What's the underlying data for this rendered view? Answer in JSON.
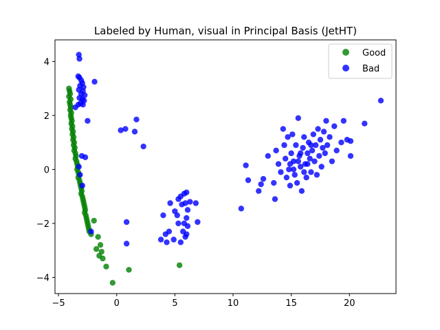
{
  "chart_data": {
    "type": "scatter",
    "title": "Labeled by Human, visual in Principal Basis (JetHT)",
    "xlabel": "",
    "ylabel": "",
    "xlim": [
      -5.3,
      24.0
    ],
    "ylim": [
      -4.6,
      4.8
    ],
    "xticks": [
      -5,
      0,
      5,
      10,
      15,
      20
    ],
    "yticks": [
      -4,
      -2,
      0,
      2,
      4
    ],
    "grid": false,
    "legend_position": "top-right",
    "series": [
      {
        "name": "Good",
        "color": "#008000",
        "points": [
          [
            -4.1,
            3.0
          ],
          [
            -4.05,
            2.9
          ],
          [
            -4.0,
            2.8
          ],
          [
            -4.1,
            2.7
          ],
          [
            -3.95,
            2.6
          ],
          [
            -4.05,
            2.5
          ],
          [
            -4.0,
            2.4
          ],
          [
            -3.95,
            2.3
          ],
          [
            -4.0,
            2.2
          ],
          [
            -3.9,
            2.1
          ],
          [
            -3.95,
            2.0
          ],
          [
            -3.9,
            1.9
          ],
          [
            -3.85,
            1.8
          ],
          [
            -3.9,
            1.7
          ],
          [
            -3.8,
            1.6
          ],
          [
            -3.85,
            1.5
          ],
          [
            -3.75,
            1.4
          ],
          [
            -3.8,
            1.3
          ],
          [
            -3.7,
            1.2
          ],
          [
            -3.75,
            1.1
          ],
          [
            -3.65,
            1.0
          ],
          [
            -3.7,
            0.9
          ],
          [
            -3.6,
            0.8
          ],
          [
            -3.65,
            0.7
          ],
          [
            -3.55,
            0.6
          ],
          [
            -3.5,
            0.5
          ],
          [
            -3.55,
            0.4
          ],
          [
            -3.45,
            0.3
          ],
          [
            -3.4,
            0.2
          ],
          [
            -3.35,
            0.1
          ],
          [
            -3.4,
            0.0
          ],
          [
            -3.3,
            -0.1
          ],
          [
            -3.25,
            -0.2
          ],
          [
            -3.3,
            -0.3
          ],
          [
            -3.2,
            -0.4
          ],
          [
            -3.15,
            -0.5
          ],
          [
            -3.1,
            -0.6
          ],
          [
            -3.05,
            -0.7
          ],
          [
            -3.0,
            -0.8
          ],
          [
            -3.05,
            -0.9
          ],
          [
            -2.95,
            -1.0
          ],
          [
            -2.9,
            -1.1
          ],
          [
            -2.85,
            -1.2
          ],
          [
            -2.8,
            -1.3
          ],
          [
            -2.75,
            -1.4
          ],
          [
            -2.7,
            -1.5
          ],
          [
            -2.75,
            -1.6
          ],
          [
            -2.65,
            -1.7
          ],
          [
            -2.6,
            -1.8
          ],
          [
            -2.55,
            -1.9
          ],
          [
            -2.5,
            -2.0
          ],
          [
            -2.45,
            -2.1
          ],
          [
            -2.4,
            -2.2
          ],
          [
            -2.35,
            -2.3
          ],
          [
            -2.2,
            -2.4
          ],
          [
            -1.95,
            -1.9
          ],
          [
            -1.6,
            -2.5
          ],
          [
            -1.4,
            -2.8
          ],
          [
            -1.75,
            -2.95
          ],
          [
            -1.3,
            -3.05
          ],
          [
            -1.5,
            -3.2
          ],
          [
            -1.2,
            -3.3
          ],
          [
            -0.9,
            -3.6
          ],
          [
            -0.35,
            -4.2
          ],
          [
            1.05,
            -3.72
          ],
          [
            5.4,
            -3.55
          ]
        ]
      },
      {
        "name": "Bad",
        "color": "#0000ff",
        "points": [
          [
            -3.25,
            4.25
          ],
          [
            -3.2,
            4.1
          ],
          [
            -3.3,
            3.45
          ],
          [
            -3.2,
            3.4
          ],
          [
            -3.05,
            3.3
          ],
          [
            -2.95,
            3.2
          ],
          [
            -3.15,
            3.1
          ],
          [
            -2.85,
            3.05
          ],
          [
            -3.25,
            2.95
          ],
          [
            -2.9,
            2.9
          ],
          [
            -3.05,
            2.8
          ],
          [
            -2.75,
            2.75
          ],
          [
            -3.2,
            2.65
          ],
          [
            -2.95,
            2.6
          ],
          [
            -2.8,
            2.55
          ],
          [
            -3.1,
            2.45
          ],
          [
            -3.3,
            2.4
          ],
          [
            -2.9,
            2.4
          ],
          [
            -1.9,
            3.25
          ],
          [
            -2.5,
            1.8
          ],
          [
            -3.55,
            2.3
          ],
          [
            -2.7,
            0.45
          ],
          [
            -3.25,
            0.1
          ],
          [
            -3.15,
            -0.2
          ],
          [
            -2.95,
            -0.6
          ],
          [
            -2.2,
            -2.3
          ],
          [
            -3.0,
            0.5
          ],
          [
            0.35,
            1.45
          ],
          [
            0.75,
            1.5
          ],
          [
            1.55,
            1.4
          ],
          [
            1.7,
            1.85
          ],
          [
            2.3,
            0.85
          ],
          [
            0.85,
            -1.95
          ],
          [
            0.85,
            -2.75
          ],
          [
            4.0,
            -1.7
          ],
          [
            4.6,
            -1.25
          ],
          [
            4.2,
            -2.4
          ],
          [
            3.8,
            -2.6
          ],
          [
            4.5,
            -2.3
          ],
          [
            4.3,
            -2.7
          ],
          [
            4.9,
            -2.6
          ],
          [
            5.2,
            -1.7
          ],
          [
            5.3,
            -2.0
          ],
          [
            5.3,
            -1.1
          ],
          [
            5.5,
            -1.0
          ],
          [
            5.8,
            -0.9
          ],
          [
            6.0,
            -0.85
          ],
          [
            5.9,
            -1.25
          ],
          [
            6.1,
            -1.5
          ],
          [
            5.6,
            -1.3
          ],
          [
            6.3,
            -1.2
          ],
          [
            5.7,
            -2.3
          ],
          [
            6.0,
            -1.8
          ],
          [
            6.1,
            -2.1
          ],
          [
            5.9,
            -2.5
          ],
          [
            5.5,
            -2.7
          ],
          [
            6.0,
            -2.4
          ],
          [
            6.8,
            -1.25
          ],
          [
            6.95,
            -1.95
          ],
          [
            5.0,
            -1.55
          ],
          [
            5.8,
            -2.0
          ],
          [
            10.7,
            -1.45
          ],
          [
            11.1,
            0.15
          ],
          [
            11.3,
            -0.4
          ],
          [
            12.2,
            -0.8
          ],
          [
            12.4,
            -0.55
          ],
          [
            12.6,
            -0.35
          ],
          [
            13.0,
            0.5
          ],
          [
            13.5,
            -0.5
          ],
          [
            13.6,
            -1.1
          ],
          [
            13.7,
            0.7
          ],
          [
            13.9,
            0.2
          ],
          [
            14.1,
            -0.1
          ],
          [
            14.3,
            1.5
          ],
          [
            14.4,
            0.9
          ],
          [
            14.5,
            0.4
          ],
          [
            14.6,
            -0.3
          ],
          [
            14.7,
            1.2
          ],
          [
            14.8,
            0.0
          ],
          [
            14.9,
            -0.6
          ],
          [
            15.0,
            0.6
          ],
          [
            15.1,
            1.3
          ],
          [
            15.2,
            0.3
          ],
          [
            15.3,
            -0.2
          ],
          [
            15.4,
            0.9
          ],
          [
            15.5,
            -0.5
          ],
          [
            15.6,
            1.9
          ],
          [
            15.7,
            0.5
          ],
          [
            15.8,
            0.1
          ],
          [
            15.9,
            -0.8
          ],
          [
            16.0,
            0.8
          ],
          [
            16.1,
            1.2
          ],
          [
            16.2,
            0.2
          ],
          [
            16.3,
            -0.3
          ],
          [
            16.4,
            0.6
          ],
          [
            16.5,
            1.0
          ],
          [
            16.6,
            0.4
          ],
          [
            16.7,
            -0.1
          ],
          [
            16.8,
            0.7
          ],
          [
            16.9,
            1.3
          ],
          [
            17.0,
            0.3
          ],
          [
            17.1,
            0.9
          ],
          [
            17.2,
            -0.2
          ],
          [
            17.3,
            1.5
          ],
          [
            17.4,
            0.5
          ],
          [
            17.5,
            1.1
          ],
          [
            17.6,
            0.1
          ],
          [
            17.7,
            0.8
          ],
          [
            17.8,
            1.4
          ],
          [
            17.9,
            0.6
          ],
          [
            18.0,
            1.8
          ],
          [
            18.1,
            0.9
          ],
          [
            18.3,
            1.2
          ],
          [
            18.5,
            0.3
          ],
          [
            18.7,
            1.6
          ],
          [
            18.9,
            0.7
          ],
          [
            19.3,
            1.0
          ],
          [
            19.5,
            1.8
          ],
          [
            19.8,
            1.1
          ],
          [
            20.1,
            0.5
          ],
          [
            20.1,
            1.05
          ],
          [
            21.3,
            1.7
          ],
          [
            22.7,
            2.55
          ],
          [
            15.2,
            0.0
          ],
          [
            15.6,
            0.3
          ],
          [
            16.1,
            -0.1
          ],
          [
            16.4,
            0.2
          ],
          [
            15.8,
            0.6
          ],
          [
            14.9,
            0.2
          ],
          [
            16.7,
            0.9
          ]
        ]
      }
    ]
  }
}
